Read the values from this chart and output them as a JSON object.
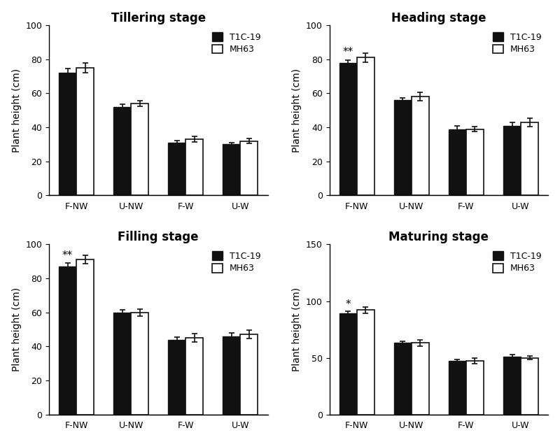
{
  "subplots": [
    {
      "title": "Tillering stage",
      "ylabel": "Plant height (cm)",
      "categories": [
        "F-NW",
        "U-NW",
        "F-W",
        "U-W"
      ],
      "t1c19": [
        72,
        52,
        31,
        30
      ],
      "mh63": [
        75,
        54,
        33,
        32
      ],
      "t1c19_err": [
        2.5,
        1.5,
        1.2,
        1.0
      ],
      "mh63_err": [
        3.0,
        1.8,
        1.5,
        1.5
      ],
      "ylim": [
        0,
        100
      ],
      "yticks": [
        0,
        20,
        40,
        60,
        80,
        100
      ],
      "significance": [
        "",
        "",
        "",
        ""
      ]
    },
    {
      "title": "Heading stage",
      "ylabel": "Plant height (cm)",
      "categories": [
        "F-NW",
        "U-NW",
        "F-W",
        "U-W"
      ],
      "t1c19": [
        78,
        56,
        39,
        41
      ],
      "mh63": [
        81,
        58,
        39,
        43
      ],
      "t1c19_err": [
        1.5,
        1.5,
        1.8,
        2.0
      ],
      "mh63_err": [
        2.5,
        2.5,
        1.5,
        2.5
      ],
      "ylim": [
        0,
        100
      ],
      "yticks": [
        0,
        20,
        40,
        60,
        80,
        100
      ],
      "significance": [
        "**",
        "",
        "",
        ""
      ]
    },
    {
      "title": "Filling stage",
      "ylabel": "Plant height (cm)",
      "categories": [
        "F-NW",
        "U-NW",
        "F-W",
        "U-W"
      ],
      "t1c19": [
        87,
        60,
        44,
        46
      ],
      "mh63": [
        91,
        60,
        45,
        47
      ],
      "t1c19_err": [
        2.0,
        1.5,
        1.5,
        2.0
      ],
      "mh63_err": [
        2.5,
        2.0,
        2.5,
        2.5
      ],
      "ylim": [
        0,
        100
      ],
      "yticks": [
        0,
        20,
        40,
        60,
        80,
        100
      ],
      "significance": [
        "**",
        "",
        "",
        ""
      ]
    },
    {
      "title": "Maturing stage",
      "ylabel": "Plant height (cm)",
      "categories": [
        "F-NW",
        "U-NW",
        "F-W",
        "U-W"
      ],
      "t1c19": [
        89,
        63,
        47,
        51
      ],
      "mh63": [
        92,
        63,
        47,
        50
      ],
      "t1c19_err": [
        2.0,
        1.5,
        1.5,
        2.0
      ],
      "mh63_err": [
        2.5,
        2.5,
        2.5,
        1.5
      ],
      "ylim": [
        0,
        150
      ],
      "yticks": [
        0,
        50,
        100,
        150
      ],
      "significance": [
        "*",
        "",
        "",
        ""
      ]
    }
  ],
  "bar_width": 0.32,
  "t1c19_color": "#111111",
  "mh63_color": "#ffffff",
  "mh63_edge_color": "#111111",
  "legend_labels": [
    "T1C-19",
    "MH63"
  ],
  "title_fontsize": 12,
  "label_fontsize": 10,
  "tick_fontsize": 9,
  "legend_fontsize": 9,
  "capsize": 3,
  "elinewidth": 1.2,
  "ecolor": "#111111"
}
